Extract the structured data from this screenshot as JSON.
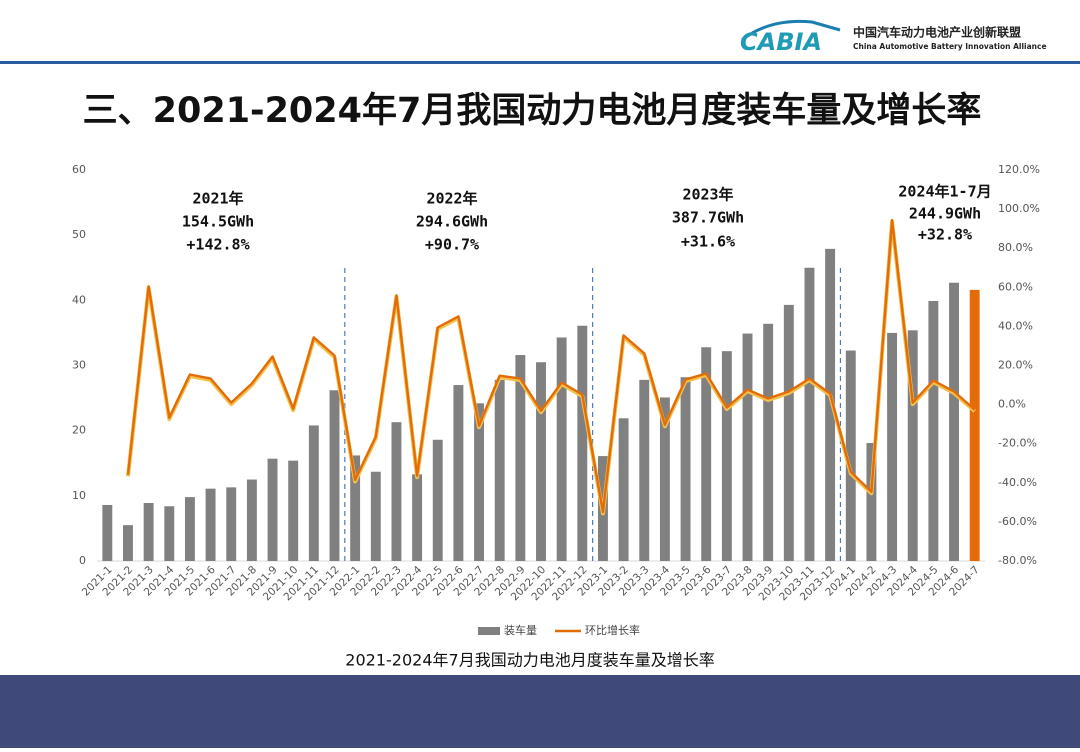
{
  "header": {
    "logo": "CABIA",
    "org_cn": "中国汽车动力电池产业创新联盟",
    "org_en": "China Automotive Battery Innovation Alliance"
  },
  "title": "三、2021-2024年7月我国动力电池月度装车量及增长率",
  "chart_data": {
    "type": "bar-line",
    "caption": "2021-2024年7月我国动力电池月度装车量及增长率",
    "categories": [
      "2021-1",
      "2021-2",
      "2021-3",
      "2021-4",
      "2021-5",
      "2021-6",
      "2021-7",
      "2021-8",
      "2021-9",
      "2021-10",
      "2021-11",
      "2021-12",
      "2022-1",
      "2022-2",
      "2022-3",
      "2022-4",
      "2022-5",
      "2022-6",
      "2022-7",
      "2022-8",
      "2022-9",
      "2022-10",
      "2022-11",
      "2022-12",
      "2023-1",
      "2023-2",
      "2023-3",
      "2023-4",
      "2023-5",
      "2023-6",
      "2023-7",
      "2023-8",
      "2023-9",
      "2023-10",
      "2023-11",
      "2023-12",
      "2024-1",
      "2024-2",
      "2024-3",
      "2024-4",
      "2024-5",
      "2024-6",
      "2024-7"
    ],
    "series": [
      {
        "name": "装车量",
        "type": "bar",
        "color": "#808080",
        "highlight": {
          "index": 42,
          "color": "#e36c09"
        },
        "values": [
          8.6,
          5.5,
          8.9,
          8.4,
          9.8,
          11.1,
          11.3,
          12.5,
          15.7,
          15.4,
          20.8,
          26.2,
          16.2,
          13.7,
          21.3,
          13.3,
          18.6,
          27.0,
          24.2,
          27.8,
          31.6,
          30.5,
          34.3,
          36.1,
          16.1,
          21.9,
          27.8,
          25.1,
          28.2,
          32.8,
          32.2,
          34.9,
          36.4,
          39.3,
          45.0,
          47.9,
          32.3,
          18.1,
          35.0,
          35.4,
          39.9,
          42.7,
          41.6
        ]
      },
      {
        "name": "环比增长率",
        "type": "line",
        "axis": "y2",
        "color": "#e36c09",
        "values": [
          null,
          -35.9,
          60.5,
          -6.7,
          15.4,
          13.3,
          1.0,
          10.8,
          24.6,
          -2.1,
          34.4,
          25.1,
          -38.5,
          -16.4,
          55.9,
          -36.4,
          39.5,
          45.1,
          -10.8,
          14.8,
          13.3,
          -3.1,
          11.3,
          5.1,
          -54.9,
          35.4,
          26.2,
          -10.3,
          12.8,
          15.9,
          -1.5,
          7.7,
          3.1,
          6.7,
          13.3,
          5.6,
          -34.4,
          -44.6,
          94.4,
          1.0,
          12.3,
          6.7,
          -2.6
        ]
      }
    ],
    "ylim": [
      0,
      60
    ],
    "yticks": [
      0,
      10,
      20,
      30,
      40,
      50,
      60
    ],
    "y2lim": [
      -80,
      120
    ],
    "y2ticks": [
      {
        "value": -80,
        "label": "-80.0%"
      },
      {
        "value": -60,
        "label": "-60.0%"
      },
      {
        "value": -40,
        "label": "-40.0%"
      },
      {
        "value": -20,
        "label": "-20.0%"
      },
      {
        "value": 0,
        "label": "0.0%"
      },
      {
        "value": 20,
        "label": "20.0%"
      },
      {
        "value": 40,
        "label": "40.0%"
      },
      {
        "value": 60,
        "label": "60.0%"
      },
      {
        "value": 80,
        "label": "80.0%"
      },
      {
        "value": 100,
        "label": "100.0%"
      },
      {
        "value": 120,
        "label": "120.0%"
      }
    ],
    "annotations": [
      [
        "2021年",
        "154.5GWh",
        "+142.8%"
      ],
      [
        "2022年",
        "294.6GWh",
        "+90.7%"
      ],
      [
        "2023年",
        "387.7GWh",
        "+31.6%"
      ],
      [
        "2024年1-7月",
        "244.9GWh",
        "+32.8%"
      ]
    ]
  }
}
